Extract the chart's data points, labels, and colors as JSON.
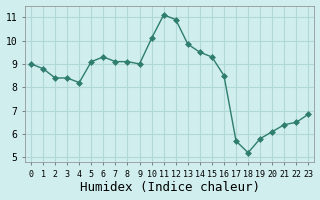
{
  "x": [
    0,
    1,
    2,
    3,
    4,
    5,
    6,
    7,
    8,
    9,
    10,
    11,
    12,
    13,
    14,
    15,
    16,
    17,
    18,
    19,
    20,
    21,
    22,
    23
  ],
  "y": [
    9.0,
    8.8,
    8.4,
    8.4,
    8.2,
    9.1,
    9.3,
    9.1,
    9.1,
    9.0,
    10.1,
    11.1,
    10.9,
    9.85,
    9.5,
    9.3,
    8.5,
    5.7,
    5.2,
    5.8,
    6.1,
    6.4,
    6.5,
    6.85
  ],
  "line_color": "#2e7d6e",
  "marker": "D",
  "marker_size": 3,
  "bg_color": "#d0eeee",
  "grid_color": "#b0d8d8",
  "xlabel": "Humidex (Indice chaleur)",
  "xlabel_fontsize": 9,
  "yticks": [
    5,
    6,
    7,
    8,
    9,
    10,
    11
  ],
  "xticks": [
    0,
    1,
    2,
    3,
    4,
    5,
    6,
    7,
    8,
    9,
    10,
    11,
    12,
    13,
    14,
    15,
    16,
    17,
    18,
    19,
    20,
    21,
    22,
    23
  ],
  "xlim": [
    -0.5,
    23.5
  ],
  "ylim": [
    4.8,
    11.5
  ]
}
